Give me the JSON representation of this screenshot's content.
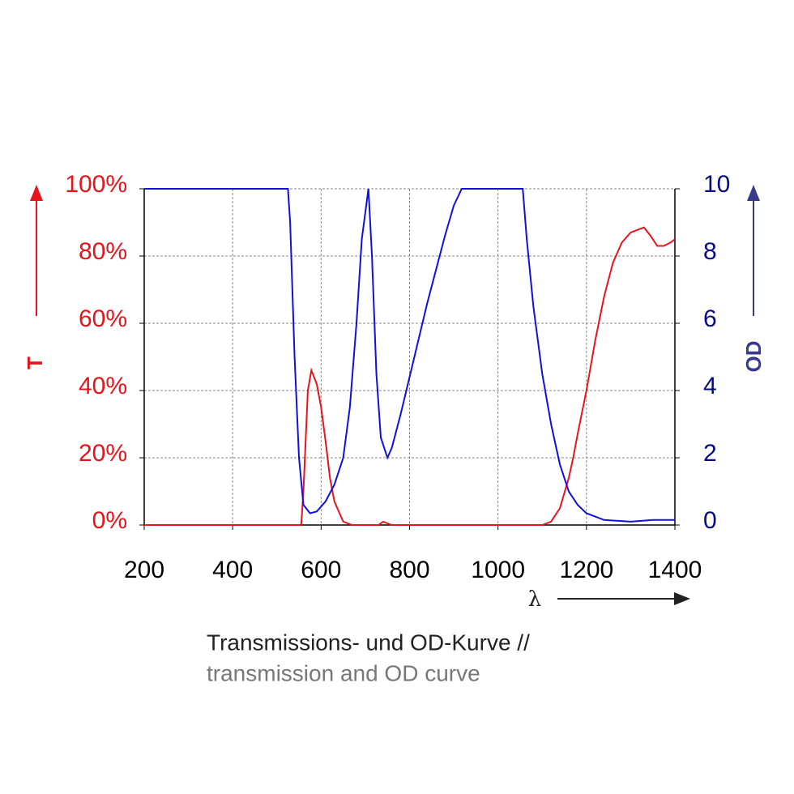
{
  "chart_data": {
    "type": "line",
    "xlabel": "λ",
    "ylabel": "T",
    "y2label": "OD",
    "caption": [
      "Transmissions- und OD-Kurve //",
      "transmission and OD curve"
    ],
    "xlim": [
      200,
      1400
    ],
    "xticks": [
      200,
      400,
      600,
      800,
      1000,
      1200,
      1400
    ],
    "ylim": [
      0,
      100
    ],
    "yticks": [
      {
        "value": 0,
        "label": "0%"
      },
      {
        "value": 20,
        "label": "20%"
      },
      {
        "value": 40,
        "label": "40%"
      },
      {
        "value": 60,
        "label": "60%"
      },
      {
        "value": 80,
        "label": "80%"
      },
      {
        "value": 100,
        "label": "100%"
      }
    ],
    "y2lim": [
      0,
      10
    ],
    "y2ticks": [
      0,
      2,
      4,
      6,
      8,
      10
    ],
    "grid": true,
    "ycolor": "#e8141b",
    "y2color": "#0a0a80",
    "series": [
      {
        "name": "T",
        "color": "#e8141b",
        "axis": "y",
        "x": [
          200,
          555,
          560,
          570,
          578,
          590,
          600,
          610,
          620,
          630,
          650,
          670,
          730,
          740,
          760,
          1100,
          1120,
          1140,
          1160,
          1170,
          1180,
          1200,
          1220,
          1240,
          1260,
          1280,
          1300,
          1330,
          1345,
          1360,
          1375,
          1390,
          1400
        ],
        "values": [
          0,
          0,
          10,
          40,
          46,
          42,
          35,
          25,
          14,
          7,
          1,
          0,
          0,
          1,
          0,
          0,
          1,
          5,
          14,
          20,
          27,
          40,
          55,
          68,
          78,
          84,
          87,
          88.5,
          86,
          83,
          83,
          84,
          85
        ]
      },
      {
        "name": "OD",
        "color": "#1010e0",
        "axis": "y2",
        "x": [
          200,
          525,
          530,
          540,
          550,
          560,
          575,
          590,
          610,
          630,
          650,
          665,
          680,
          692,
          707,
          715,
          725,
          735,
          750,
          760,
          780,
          800,
          820,
          840,
          860,
          880,
          900,
          918,
          1056,
          1065,
          1080,
          1100,
          1120,
          1140,
          1160,
          1180,
          1200,
          1240,
          1300,
          1350,
          1400
        ],
        "values": [
          10,
          10,
          9,
          5,
          2,
          0.6,
          0.35,
          0.4,
          0.7,
          1.2,
          2.0,
          3.5,
          6,
          8.5,
          10,
          8,
          4.5,
          2.6,
          2.0,
          2.3,
          3.3,
          4.4,
          5.5,
          6.6,
          7.6,
          8.6,
          9.5,
          10,
          10,
          8.5,
          6.5,
          4.5,
          3,
          1.8,
          1.0,
          0.6,
          0.35,
          0.15,
          0.1,
          0.15,
          0.15
        ]
      }
    ]
  }
}
